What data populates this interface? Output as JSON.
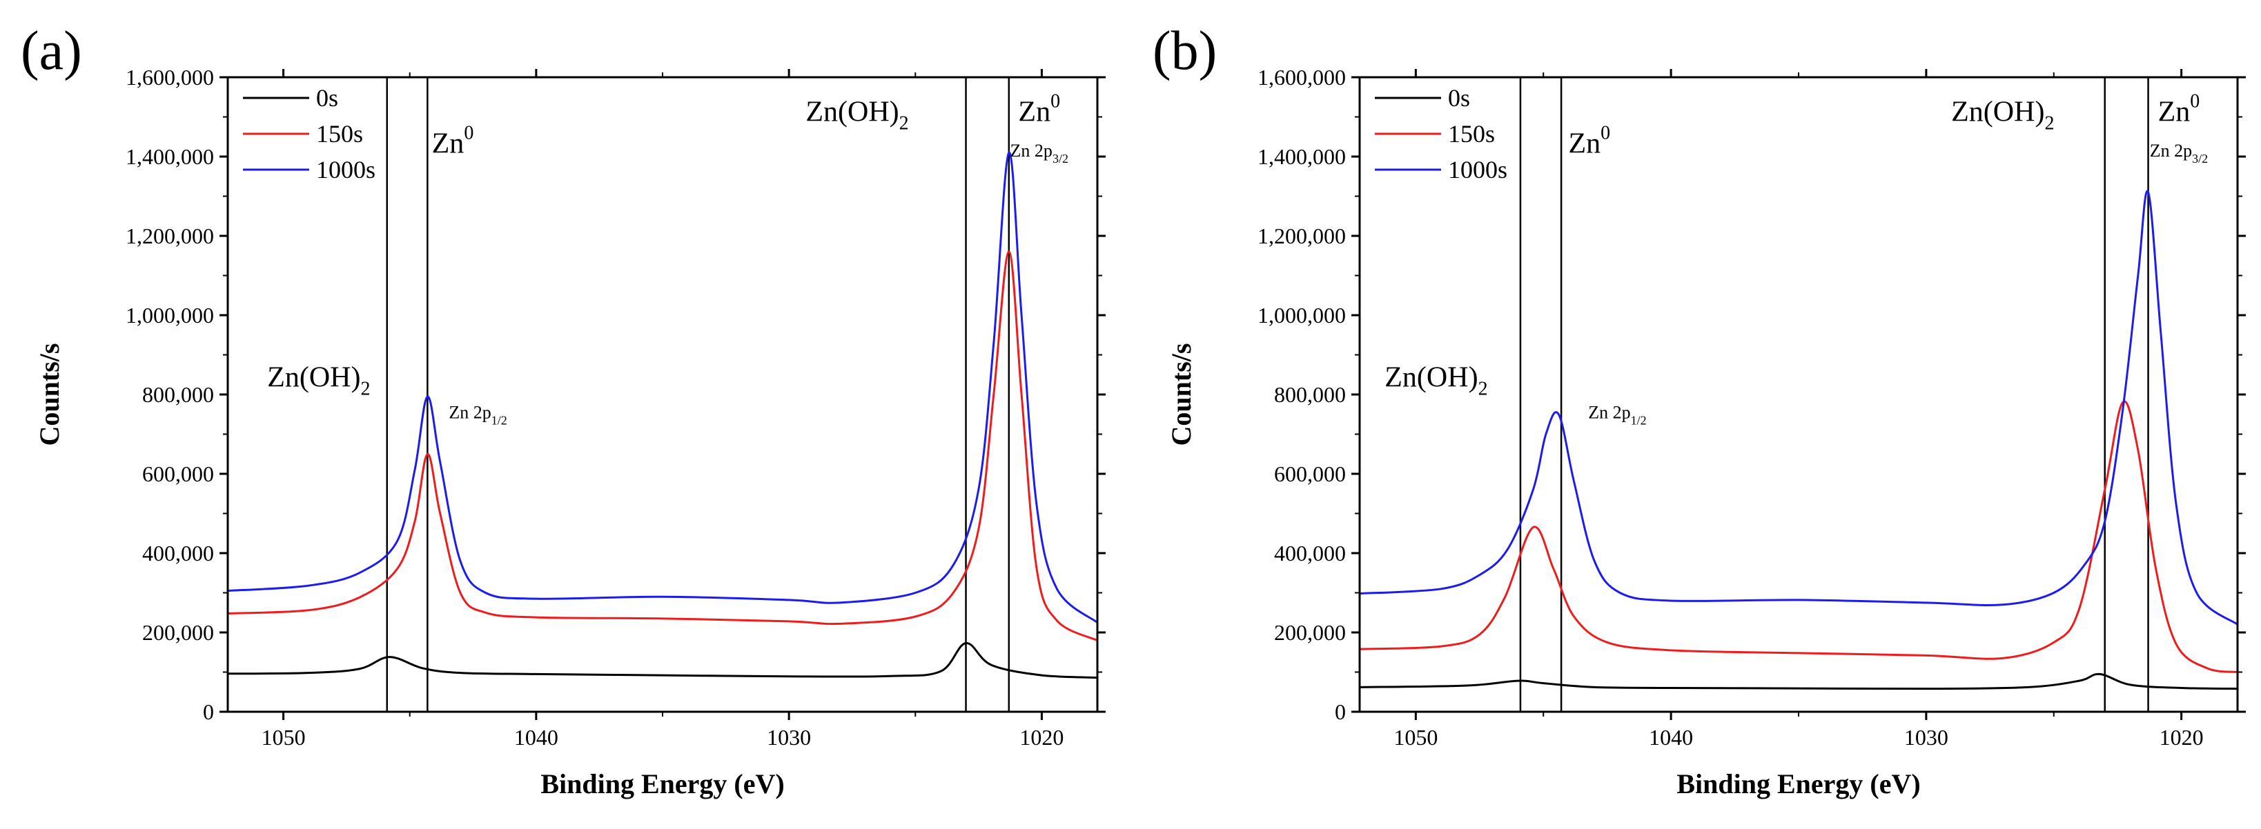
{
  "chart_data": [
    {
      "type": "line",
      "panel_label": "(a)",
      "xlabel": "Binding Energy (eV)",
      "ylabel": "Counts/s",
      "xlim": [
        1052.2,
        1017.8
      ],
      "ylim": [
        0,
        1600000
      ],
      "xticks": [
        1050,
        1040,
        1030,
        1020
      ],
      "yticks": [
        0,
        200000,
        400000,
        600000,
        800000,
        1000000,
        1200000,
        1400000,
        1600000
      ],
      "ytick_labels": [
        "0",
        "200,000",
        "400,000",
        "600,000",
        "800,000",
        "1,000,000",
        "1,200,000",
        "1,400,000",
        "1,600,000"
      ],
      "legend": {
        "position": "top-left",
        "entries": [
          "0s",
          "150s",
          "1000s"
        ]
      },
      "vlines": [
        1045.9,
        1044.3,
        1023.0,
        1021.3
      ],
      "annotations": [
        {
          "main": "Zn(OH)",
          "sub": "2",
          "size": "big",
          "x": 1048.6,
          "y": 820000
        },
        {
          "main": "Zn 2p",
          "sub": "1/2",
          "size": "small",
          "x": 1042.3,
          "y": 740000
        },
        {
          "main": "Zn(OH)",
          "sub": "2",
          "size": "big",
          "x": 1027.3,
          "y": 1490000
        },
        {
          "main": "Zn",
          "sup": "0",
          "size": "big",
          "x": 1043.3,
          "y": 1410000
        },
        {
          "main": "Zn",
          "sup": "0",
          "size": "big",
          "x": 1020.1,
          "y": 1490000
        },
        {
          "main": "Zn 2p",
          "sub": "3/2",
          "size": "small",
          "x": 1020.1,
          "y": 1400000
        }
      ],
      "series": [
        {
          "name": "0s",
          "color": "#000000",
          "points": [
            [
              1052.2,
              96000
            ],
            [
              1049,
              98000
            ],
            [
              1047,
              108000
            ],
            [
              1045.8,
              138000
            ],
            [
              1044.5,
              110000
            ],
            [
              1043,
              98000
            ],
            [
              1040,
              95000
            ],
            [
              1035,
              92000
            ],
            [
              1030,
              89000
            ],
            [
              1026,
              90000
            ],
            [
              1024,
              102000
            ],
            [
              1023,
              173000
            ],
            [
              1022,
              118000
            ],
            [
              1020,
              92000
            ],
            [
              1017.8,
              86000
            ]
          ]
        },
        {
          "name": "150s",
          "color": "#ee1c1c",
          "points": [
            [
              1052.2,
              248000
            ],
            [
              1049,
              256000
            ],
            [
              1047,
              288000
            ],
            [
              1045.5,
              360000
            ],
            [
              1044.8,
              480000
            ],
            [
              1044.3,
              650000
            ],
            [
              1043.8,
              500000
            ],
            [
              1043,
              300000
            ],
            [
              1042,
              250000
            ],
            [
              1040,
              238000
            ],
            [
              1035,
              235000
            ],
            [
              1030,
              228000
            ],
            [
              1028,
              222000
            ],
            [
              1025,
              240000
            ],
            [
              1023.5,
              300000
            ],
            [
              1022.5,
              460000
            ],
            [
              1021.9,
              800000
            ],
            [
              1021.3,
              1160000
            ],
            [
              1020.8,
              800000
            ],
            [
              1020.2,
              360000
            ],
            [
              1019.4,
              230000
            ],
            [
              1017.8,
              180000
            ]
          ]
        },
        {
          "name": "1000s",
          "color": "#1c1cee",
          "points": [
            [
              1052.2,
              305000
            ],
            [
              1049,
              318000
            ],
            [
              1047,
              350000
            ],
            [
              1045.5,
              430000
            ],
            [
              1044.8,
              610000
            ],
            [
              1044.3,
              795000
            ],
            [
              1043.8,
              630000
            ],
            [
              1043,
              380000
            ],
            [
              1042,
              300000
            ],
            [
              1040,
              285000
            ],
            [
              1035,
              290000
            ],
            [
              1030,
              282000
            ],
            [
              1028,
              275000
            ],
            [
              1025,
              300000
            ],
            [
              1023.5,
              370000
            ],
            [
              1022.5,
              560000
            ],
            [
              1021.9,
              930000
            ],
            [
              1021.3,
              1410000
            ],
            [
              1020.8,
              1000000
            ],
            [
              1020.2,
              520000
            ],
            [
              1019.4,
              310000
            ],
            [
              1017.8,
              225000
            ]
          ]
        }
      ]
    },
    {
      "type": "line",
      "panel_label": "(b)",
      "xlabel": "Binding Energy (eV)",
      "ylabel": "Counts/s",
      "xlim": [
        1052.2,
        1017.8
      ],
      "ylim": [
        0,
        1600000
      ],
      "xticks": [
        1050,
        1040,
        1030,
        1020
      ],
      "yticks": [
        0,
        200000,
        400000,
        600000,
        800000,
        1000000,
        1200000,
        1400000,
        1600000
      ],
      "ytick_labels": [
        "0",
        "200,000",
        "400,000",
        "600,000",
        "800,000",
        "1,000,000",
        "1,200,000",
        "1,400,000",
        "1,600,000"
      ],
      "legend": {
        "position": "top-left",
        "entries": [
          "0s",
          "150s",
          "1000s"
        ]
      },
      "vlines": [
        1045.9,
        1044.3,
        1023.0,
        1021.3
      ],
      "annotations": [
        {
          "main": "Zn(OH)",
          "sub": "2",
          "size": "big",
          "x": 1049.2,
          "y": 820000
        },
        {
          "main": "Zn 2p",
          "sub": "1/2",
          "size": "small",
          "x": 1042.1,
          "y": 740000
        },
        {
          "main": "Zn(OH)",
          "sub": "2",
          "size": "big",
          "x": 1027.0,
          "y": 1490000
        },
        {
          "main": "Zn",
          "sup": "0",
          "size": "big",
          "x": 1043.2,
          "y": 1410000
        },
        {
          "main": "Zn",
          "sup": "0",
          "size": "big",
          "x": 1020.1,
          "y": 1490000
        },
        {
          "main": "Zn 2p",
          "sub": "3/2",
          "size": "small",
          "x": 1020.1,
          "y": 1400000
        }
      ],
      "series": [
        {
          "name": "0s",
          "color": "#000000",
          "points": [
            [
              1052.2,
              62000
            ],
            [
              1048,
              66000
            ],
            [
              1046,
              78000
            ],
            [
              1045,
              72000
            ],
            [
              1043,
              62000
            ],
            [
              1040,
              60000
            ],
            [
              1035,
              59000
            ],
            [
              1030,
              58000
            ],
            [
              1026,
              62000
            ],
            [
              1024,
              78000
            ],
            [
              1023.2,
              95000
            ],
            [
              1022,
              68000
            ],
            [
              1020,
              60000
            ],
            [
              1017.8,
              58000
            ]
          ]
        },
        {
          "name": "150s",
          "color": "#ee1c1c",
          "points": [
            [
              1052.2,
              158000
            ],
            [
              1049,
              165000
            ],
            [
              1047.5,
              195000
            ],
            [
              1046.5,
              290000
            ],
            [
              1045.4,
              465000
            ],
            [
              1044.6,
              360000
            ],
            [
              1043.8,
              240000
            ],
            [
              1042.5,
              175000
            ],
            [
              1040,
              155000
            ],
            [
              1035,
              148000
            ],
            [
              1030,
              142000
            ],
            [
              1027,
              135000
            ],
            [
              1025,
              175000
            ],
            [
              1024,
              260000
            ],
            [
              1023,
              560000
            ],
            [
              1022.3,
              780000
            ],
            [
              1021.7,
              660000
            ],
            [
              1021,
              360000
            ],
            [
              1020.2,
              170000
            ],
            [
              1019,
              110000
            ],
            [
              1017.8,
              100000
            ]
          ]
        },
        {
          "name": "1000s",
          "color": "#1c1cee",
          "points": [
            [
              1052.2,
              298000
            ],
            [
              1049,
              310000
            ],
            [
              1047.5,
              345000
            ],
            [
              1046.4,
              410000
            ],
            [
              1045.4,
              560000
            ],
            [
              1044.9,
              700000
            ],
            [
              1044.4,
              750000
            ],
            [
              1043.8,
              580000
            ],
            [
              1043,
              380000
            ],
            [
              1042,
              300000
            ],
            [
              1040,
              280000
            ],
            [
              1035,
              282000
            ],
            [
              1030,
              275000
            ],
            [
              1027,
              270000
            ],
            [
              1025,
              300000
            ],
            [
              1023.8,
              370000
            ],
            [
              1023,
              480000
            ],
            [
              1022.3,
              760000
            ],
            [
              1021.7,
              1100000
            ],
            [
              1021.3,
              1310000
            ],
            [
              1020.8,
              950000
            ],
            [
              1020.2,
              520000
            ],
            [
              1019.4,
              300000
            ],
            [
              1017.8,
              220000
            ]
          ]
        }
      ]
    }
  ]
}
